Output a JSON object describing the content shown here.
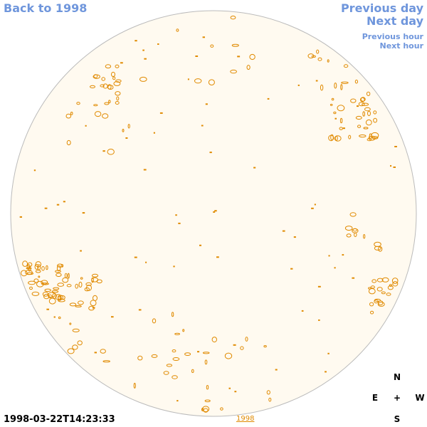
{
  "nav": {
    "back_label": "Back to 1998",
    "prev_day_label": "Previous day",
    "next_day_label": "Next day",
    "prev_hour_label": "Previous hour",
    "next_hour_label": "Next hour"
  },
  "timestamp": "1998-03-22T14:23:33",
  "year_link": "1998",
  "compass": {
    "north": "N",
    "east": "E",
    "center": "+",
    "west": "W",
    "south": "S"
  },
  "colors": {
    "disk_fill": "#fffaf0",
    "disk_border": "#bbbbbb",
    "contour": "#e08a00",
    "link": "#6f96dc"
  }
}
